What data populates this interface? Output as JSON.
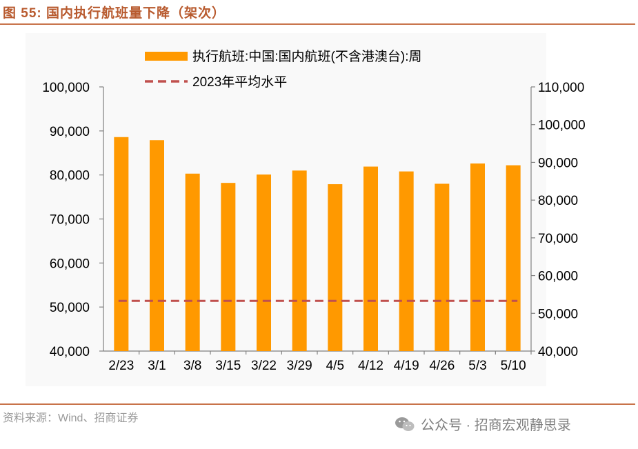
{
  "figure": {
    "title": "图 55:  国内执行航班量下降（架次）",
    "source": "资料来源：Wind、招商证券",
    "watermark": "公众号 · 招商宏观静思录"
  },
  "colors": {
    "bar": "#ff9900",
    "avg_line": "#c0504d",
    "title": "#b85a2e",
    "rule": "#c8734a"
  },
  "chart_data": {
    "type": "bar",
    "title": "",
    "categories": [
      "2/23",
      "3/1",
      "3/8",
      "3/15",
      "3/22",
      "3/29",
      "4/5",
      "4/12",
      "4/19",
      "4/26",
      "5/3",
      "5/10"
    ],
    "series": [
      {
        "name": "执行航班:中国:国内航班(不含港澳台):周",
        "axis": "left",
        "values": [
          88600,
          87900,
          80300,
          78200,
          80100,
          81000,
          77900,
          81900,
          80800,
          78000,
          82600,
          82200
        ]
      },
      {
        "name": "2023年平均水平",
        "axis": "right",
        "style": "dashed-line",
        "value": 53300
      }
    ],
    "left_axis": {
      "ylim": [
        40000,
        100000
      ],
      "ticks": [
        "40,000",
        "50,000",
        "60,000",
        "70,000",
        "80,000",
        "90,000",
        "100,000"
      ]
    },
    "right_axis": {
      "ylim": [
        40000,
        110000
      ],
      "ticks": [
        "40,000",
        "50,000",
        "60,000",
        "70,000",
        "80,000",
        "90,000",
        "100,000",
        "110,000"
      ]
    },
    "xlabel": "",
    "ylabel": "",
    "legend": "top"
  }
}
